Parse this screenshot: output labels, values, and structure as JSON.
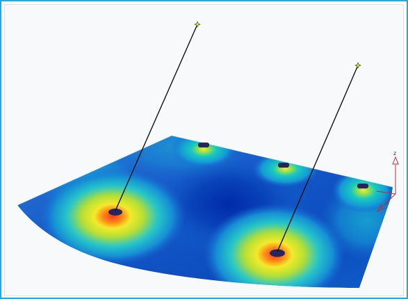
{
  "viewport": {
    "axis_labels": {
      "z": "z"
    }
  },
  "colors": {
    "frame_border": "#24a9dc",
    "low_value": "#1845b8",
    "mid_value": "#13b5d6",
    "high_value": "#e7e327",
    "hot_value": "#ff5a1f",
    "post_line": "#111111",
    "marker": "#22245e",
    "axis": "#c8282f"
  }
}
